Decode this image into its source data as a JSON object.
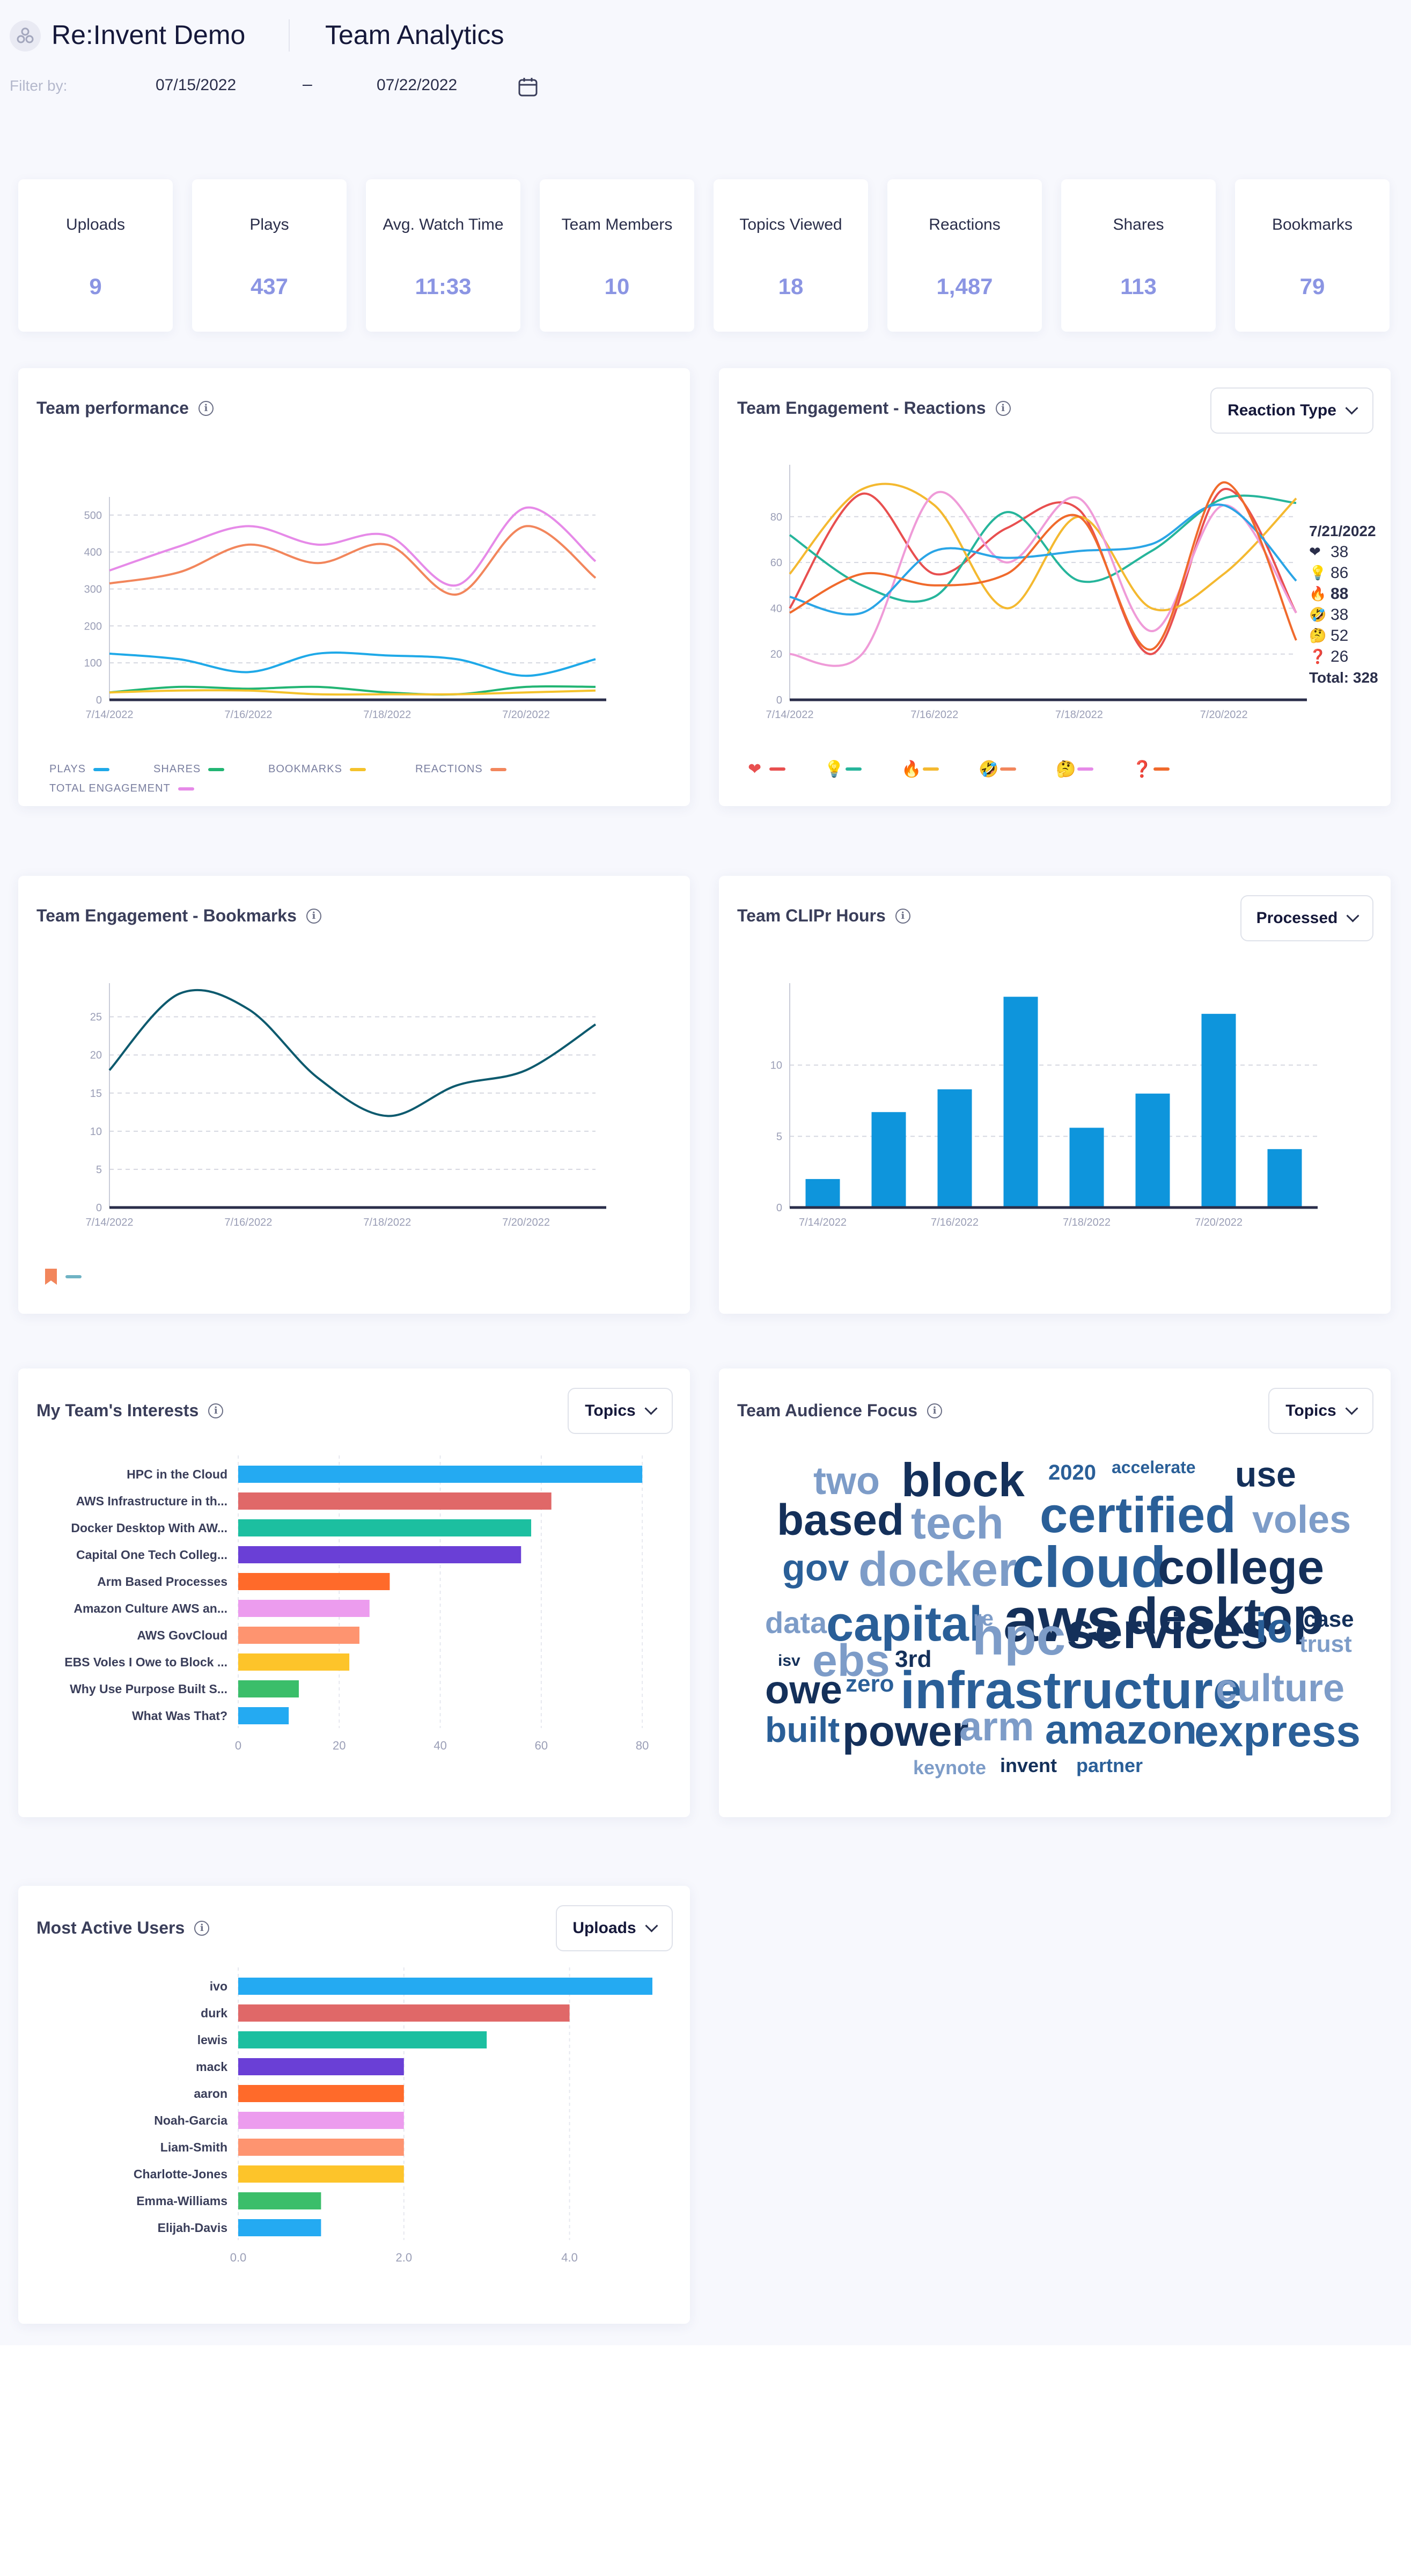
{
  "header": {
    "app_title": "Re:Invent Demo",
    "page_title": "Team Analytics",
    "filter_label": "Filter by:",
    "date_from": "07/15/2022",
    "date_separator": "–",
    "date_to": "07/22/2022"
  },
  "kpis": [
    {
      "label": "Uploads",
      "value": "9"
    },
    {
      "label": "Plays",
      "value": "437"
    },
    {
      "label": "Avg. Watch Time",
      "value": "11:33"
    },
    {
      "label": "Team Members",
      "value": "10"
    },
    {
      "label": "Topics Viewed",
      "value": "18"
    },
    {
      "label": "Reactions",
      "value": "1,487"
    },
    {
      "label": "Shares",
      "value": "113"
    },
    {
      "label": "Bookmarks",
      "value": "79"
    }
  ],
  "cards": {
    "team_performance": {
      "title": "Team performance",
      "legend": [
        "PLAYS",
        "SHARES",
        "BOOKMARKS",
        "REACTIONS",
        "TOTAL ENGAGEMENT"
      ]
    },
    "reactions": {
      "title": "Team Engagement - Reactions",
      "dropdown": "Reaction Type"
    },
    "bookmarks": {
      "title": "Team Engagement - Bookmarks"
    },
    "clipr_hours": {
      "title": "Team CLIPr Hours",
      "dropdown": "Processed"
    },
    "interests": {
      "title": "My Team's Interests",
      "dropdown": "Topics"
    },
    "audience": {
      "title": "Team Audience Focus",
      "dropdown": "Topics"
    },
    "active_users": {
      "title": "Most Active Users",
      "dropdown": "Uploads"
    }
  },
  "tooltip": {
    "date": "7/21/2022",
    "rows": [
      {
        "emoji": "❤",
        "value": "38",
        "bold": false
      },
      {
        "emoji": "💡",
        "value": "86",
        "bold": false
      },
      {
        "emoji": "🔥",
        "value": "88",
        "bold": true
      },
      {
        "emoji": "🤣",
        "value": "38",
        "bold": false
      },
      {
        "emoji": "🤔",
        "value": "52",
        "bold": false
      },
      {
        "emoji": "❓",
        "value": "26",
        "bold": false
      }
    ],
    "total": "Total: 328"
  },
  "colors": {
    "plays": "#1fa9e8",
    "shares": "#22b573",
    "bookmarks": "#f4c22b",
    "reactions": "#f2865c",
    "total": "#e68ae8",
    "kpi_value": "#8b95e3",
    "bookmark_line": "#0d5a6e",
    "clipr_bar": "#0e95dc"
  },
  "chart_data": [
    {
      "id": "team_performance",
      "type": "line",
      "x": [
        "7/14/2022",
        "7/15/2022",
        "7/16/2022",
        "7/17/2022",
        "7/18/2022",
        "7/19/2022",
        "7/20/2022",
        "7/21/2022"
      ],
      "xticks": [
        "7/14/2022",
        "7/16/2022",
        "7/18/2022",
        "7/20/2022"
      ],
      "ylim": [
        0,
        520
      ],
      "yticks": [
        0,
        100,
        200,
        300,
        400,
        500
      ],
      "series": [
        {
          "name": "PLAYS",
          "values": [
            125,
            110,
            75,
            125,
            120,
            110,
            65,
            110
          ]
        },
        {
          "name": "SHARES",
          "values": [
            20,
            35,
            30,
            35,
            20,
            15,
            35,
            35
          ]
        },
        {
          "name": "BOOKMARKS",
          "values": [
            20,
            25,
            25,
            15,
            15,
            15,
            20,
            25
          ]
        },
        {
          "name": "REACTIONS",
          "values": [
            315,
            345,
            420,
            370,
            420,
            285,
            470,
            330
          ]
        },
        {
          "name": "TOTAL ENGAGEMENT",
          "values": [
            350,
            415,
            470,
            420,
            445,
            310,
            520,
            375
          ]
        }
      ]
    },
    {
      "id": "reactions",
      "type": "line",
      "x": [
        "7/14/2022",
        "7/15/2022",
        "7/16/2022",
        "7/17/2022",
        "7/18/2022",
        "7/19/2022",
        "7/20/2022",
        "7/21/2022"
      ],
      "xticks": [
        "7/14/2022",
        "7/16/2022",
        "7/18/2022",
        "7/20/2022"
      ],
      "ylim": [
        0,
        98
      ],
      "yticks": [
        0,
        20,
        40,
        60,
        80
      ],
      "series": [
        {
          "name": "❤",
          "values": [
            40,
            90,
            55,
            75,
            83,
            20,
            92,
            38
          ]
        },
        {
          "name": "💡",
          "values": [
            72,
            50,
            45,
            82,
            52,
            65,
            88,
            86
          ]
        },
        {
          "name": "🔥",
          "values": [
            55,
            92,
            85,
            40,
            80,
            40,
            55,
            88
          ]
        },
        {
          "name": "🤣",
          "values": [
            20,
            20,
            90,
            60,
            88,
            30,
            85,
            38
          ]
        },
        {
          "name": "🤔",
          "values": [
            45,
            38,
            65,
            62,
            65,
            68,
            85,
            52
          ]
        },
        {
          "name": "❓",
          "values": [
            38,
            55,
            50,
            55,
            80,
            22,
            95,
            26
          ]
        }
      ]
    },
    {
      "id": "bookmarks",
      "type": "line",
      "x": [
        "7/14/2022",
        "7/15/2022",
        "7/16/2022",
        "7/17/2022",
        "7/18/2022",
        "7/19/2022",
        "7/20/2022",
        "7/21/2022"
      ],
      "xticks": [
        "7/14/2022",
        "7/16/2022",
        "7/18/2022",
        "7/20/2022"
      ],
      "ylim": [
        0,
        28
      ],
      "yticks": [
        0,
        5,
        10,
        15,
        20,
        25
      ],
      "series": [
        {
          "name": "",
          "values": [
            18,
            28,
            26,
            17,
            12,
            16,
            18,
            24
          ]
        }
      ]
    },
    {
      "id": "clipr_hours",
      "type": "bar",
      "categories": [
        "7/14/2022",
        "7/15/2022",
        "7/16/2022",
        "7/17/2022",
        "7/18/2022",
        "7/19/2022",
        "7/20/2022",
        "7/21/2022"
      ],
      "xticks": [
        "7/14/2022",
        "7/16/2022",
        "7/18/2022",
        "7/20/2022"
      ],
      "ylim": [
        0,
        15
      ],
      "yticks": [
        0,
        5,
        10
      ],
      "values": [
        2,
        6.7,
        8.3,
        14.8,
        5.6,
        8,
        13.6,
        4.1
      ]
    },
    {
      "id": "interests",
      "type": "bar",
      "orientation": "horizontal",
      "xlim": [
        0,
        82
      ],
      "xticks": [
        "0",
        "20",
        "40",
        "60",
        "80"
      ],
      "xtick_values": [
        0,
        20,
        40,
        60,
        80
      ],
      "categories": [
        "HPC in the Cloud",
        "AWS Infrastructure in th...",
        "Docker Desktop With AW...",
        "Capital One Tech Colleg...",
        "Arm Based Processes",
        "Amazon Culture AWS an...",
        "AWS GovCloud",
        "EBS Voles I Owe to Block ...",
        "Why Use Purpose Built S...",
        "What Was That?"
      ],
      "values": [
        80,
        62,
        58,
        56,
        30,
        26,
        24,
        22,
        12,
        10
      ],
      "colors": [
        "#24aaf2",
        "#e06868",
        "#1cbfa0",
        "#6a3fd6",
        "#ff6a2a",
        "#ec9cee",
        "#fe9470",
        "#fdc42a",
        "#3bbe6a",
        "#24aaf2"
      ]
    },
    {
      "id": "active_users",
      "type": "bar",
      "orientation": "horizontal",
      "xlim": [
        0,
        5
      ],
      "xticks": [
        "0.0",
        "2.0",
        "4.0"
      ],
      "xtick_values": [
        0,
        2,
        4
      ],
      "categories": [
        "ivo",
        "durk",
        "lewis",
        "mack",
        "aaron",
        "Noah-Garcia",
        "Liam-Smith",
        "Charlotte-Jones",
        "Emma-Williams",
        "Elijah-Davis"
      ],
      "values": [
        5,
        4,
        3,
        2,
        2,
        2,
        2,
        2,
        1,
        1
      ],
      "colors": [
        "#24aaf2",
        "#e06868",
        "#1cbfa0",
        "#6a3fd6",
        "#ff6a2a",
        "#ec9cee",
        "#fe9470",
        "#fdc42a",
        "#3bbe6a",
        "#24aaf2"
      ]
    }
  ],
  "word_cloud": [
    {
      "text": "two",
      "size": 72,
      "color": "#7d9cc8"
    },
    {
      "text": "block",
      "size": 88,
      "color": "#14305a"
    },
    {
      "text": "2020",
      "size": 40,
      "color": "#2a5f98"
    },
    {
      "text": "accelerate",
      "size": 32,
      "color": "#2a5f98"
    },
    {
      "text": "use",
      "size": 66,
      "color": "#14305a"
    },
    {
      "text": "based",
      "size": 82,
      "color": "#14305a"
    },
    {
      "text": "tech",
      "size": 84,
      "color": "#7d9cc8"
    },
    {
      "text": "certified",
      "size": 94,
      "color": "#2a5f98"
    },
    {
      "text": "voles",
      "size": 72,
      "color": "#7d9cc8"
    },
    {
      "text": "gov",
      "size": 70,
      "color": "#2a5f98"
    },
    {
      "text": "docker",
      "size": 90,
      "color": "#7d9cc8"
    },
    {
      "text": "cloud",
      "size": 108,
      "color": "#2a5f98"
    },
    {
      "text": "college",
      "size": 90,
      "color": "#14305a"
    },
    {
      "text": "aws",
      "size": 116,
      "color": "#14305a"
    },
    {
      "text": "desktop",
      "size": 96,
      "color": "#14305a"
    },
    {
      "text": "case",
      "size": 42,
      "color": "#14305a"
    },
    {
      "text": "data",
      "size": 56,
      "color": "#7d9cc8"
    },
    {
      "text": "capital",
      "size": 92,
      "color": "#2a5f98"
    },
    {
      "text": "re",
      "size": 40,
      "color": "#7d9cc8"
    },
    {
      "text": "hpc",
      "size": 98,
      "color": "#7d9cc8"
    },
    {
      "text": "services",
      "size": 94,
      "color": "#14305a"
    },
    {
      "text": "io",
      "size": 78,
      "color": "#2a5f98"
    },
    {
      "text": "trust",
      "size": 44,
      "color": "#7d9cc8"
    },
    {
      "text": "isv",
      "size": 30,
      "color": "#14305a"
    },
    {
      "text": "ebs",
      "size": 84,
      "color": "#7d9cc8"
    },
    {
      "text": "3rd",
      "size": 44,
      "color": "#14305a"
    },
    {
      "text": "owe",
      "size": 74,
      "color": "#14305a"
    },
    {
      "text": "zero",
      "size": 44,
      "color": "#2a5f98"
    },
    {
      "text": "infrastructure",
      "size": 98,
      "color": "#2a5f98"
    },
    {
      "text": "culture",
      "size": 72,
      "color": "#7d9cc8"
    },
    {
      "text": "built",
      "size": 66,
      "color": "#2a5f98"
    },
    {
      "text": "power",
      "size": 80,
      "color": "#14305a"
    },
    {
      "text": "arm",
      "size": 76,
      "color": "#7d9cc8"
    },
    {
      "text": "amazon",
      "size": 76,
      "color": "#2a5f98"
    },
    {
      "text": "express",
      "size": 82,
      "color": "#2a5f98"
    },
    {
      "text": "keynote",
      "size": 36,
      "color": "#7d9cc8"
    },
    {
      "text": "invent",
      "size": 36,
      "color": "#14305a"
    },
    {
      "text": "partner",
      "size": 36,
      "color": "#2a5f98"
    }
  ]
}
